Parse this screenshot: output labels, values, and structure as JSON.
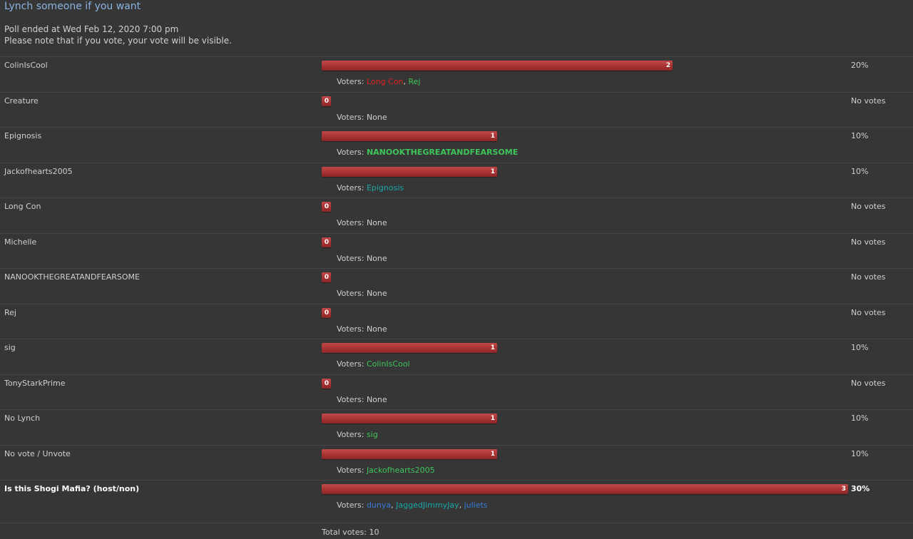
{
  "poll": {
    "title": "Lynch someone if you want",
    "ended_text": "Poll ended at Wed Feb 12, 2020 7:00 pm",
    "note_text": "Please note that if you vote, your vote will be visible.",
    "voters_label": "Voters: ",
    "none_text": "None",
    "max_votes": 3,
    "options": [
      {
        "name": "ColinIsCool",
        "votes": 2,
        "percent": "20%",
        "voters": [
          {
            "name": "Long Con",
            "color": "#e02020"
          },
          {
            "name": "Rej",
            "color": "#3ec55a"
          }
        ]
      },
      {
        "name": "Creature",
        "votes": 0,
        "percent": "No votes",
        "voters": []
      },
      {
        "name": "Epignosis",
        "votes": 1,
        "percent": "10%",
        "voters": [
          {
            "name": "NANOOKTHEGREATANDFEARSOME",
            "color": "#3ec55a",
            "bold": true
          }
        ]
      },
      {
        "name": "Jackofhearts2005",
        "votes": 1,
        "percent": "10%",
        "voters": [
          {
            "name": "Epignosis",
            "color": "#19a7a7"
          }
        ]
      },
      {
        "name": "Long Con",
        "votes": 0,
        "percent": "No votes",
        "voters": []
      },
      {
        "name": "Michelle",
        "votes": 0,
        "percent": "No votes",
        "voters": []
      },
      {
        "name": "NANOOKTHEGREATANDFEARSOME",
        "votes": 0,
        "percent": "No votes",
        "voters": []
      },
      {
        "name": "Rej",
        "votes": 0,
        "percent": "No votes",
        "voters": []
      },
      {
        "name": "sig",
        "votes": 1,
        "percent": "10%",
        "voters": [
          {
            "name": "ColinIsCool",
            "color": "#3ec55a"
          }
        ]
      },
      {
        "name": "TonyStarkPrime",
        "votes": 0,
        "percent": "No votes",
        "voters": []
      },
      {
        "name": "No Lynch",
        "votes": 1,
        "percent": "10%",
        "voters": [
          {
            "name": "sig",
            "color": "#3ec55a"
          }
        ]
      },
      {
        "name": "No vote / Unvote",
        "votes": 1,
        "percent": "10%",
        "voters": [
          {
            "name": "Jackofhearts2005",
            "color": "#3ec55a"
          }
        ]
      },
      {
        "name": "Is this Shogi Mafia? (host/non)",
        "votes": 3,
        "percent": "30%",
        "bold": true,
        "voters": [
          {
            "name": "dunya",
            "color": "#3a7ad8"
          },
          {
            "name": "JaggedJimmyJay",
            "color": "#19a7a7"
          },
          {
            "name": "juliets",
            "color": "#3a7ad8"
          }
        ]
      }
    ],
    "total_votes_label": "Total votes: 10"
  }
}
